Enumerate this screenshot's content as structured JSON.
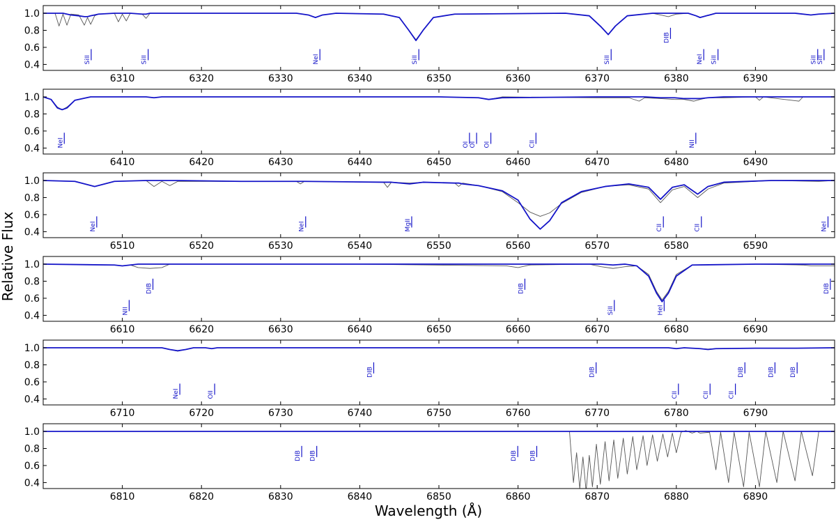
{
  "xlabel": "Wavelength (Å)",
  "ylabel": "Relative Flux",
  "chart_data": [
    {
      "type": "line",
      "xlim": [
        6300,
        6400
      ],
      "xticks": [
        6310,
        6320,
        6330,
        6340,
        6350,
        6360,
        6370,
        6380,
        6390
      ],
      "ylim": [
        0.33,
        1.09
      ],
      "yticks": [
        0.4,
        0.6,
        0.8,
        {
          "value": 1,
          "label": "1.0"
        }
      ],
      "x": [
        6300,
        6301.5,
        6302,
        6302.5,
        6303,
        6303.5,
        6304.5,
        6305.2,
        6305.6,
        6306,
        6306.5,
        6307,
        6309,
        6309.5,
        6310,
        6310.5,
        6311,
        6312.5,
        6313,
        6313.5,
        6320,
        6332,
        6333.5,
        6334.4,
        6335.3,
        6337,
        6343,
        6345,
        6346.2,
        6347.1,
        6348,
        6349.3,
        6352,
        6366,
        6369,
        6370.5,
        6371.4,
        6372.3,
        6373.8,
        6377,
        6378,
        6379,
        6380,
        6381.5,
        6382.5,
        6383,
        6383.8,
        6385,
        6395,
        6397,
        6398,
        6400
      ],
      "series": [
        {
          "color": "#555555",
          "values": [
            1.0,
            1.0,
            0.85,
            0.99,
            0.86,
            0.99,
            0.98,
            0.86,
            0.95,
            0.87,
            0.97,
            0.99,
            1.0,
            0.9,
            0.99,
            0.91,
            1.0,
            0.99,
            0.94,
            1.0,
            1.0,
            1.0,
            0.98,
            0.95,
            0.98,
            1.0,
            0.99,
            0.95,
            0.8,
            0.69,
            0.8,
            0.95,
            0.99,
            1.0,
            0.97,
            0.84,
            0.75,
            0.85,
            0.97,
            1.0,
            0.98,
            0.96,
            0.99,
            1.0,
            0.97,
            0.95,
            0.97,
            1.0,
            1.0,
            0.98,
            0.99,
            1.0
          ]
        },
        {
          "color": "#1414c8",
          "values": [
            1.0,
            1.0,
            1.0,
            1.0,
            0.99,
            0.98,
            0.97,
            0.96,
            0.96,
            0.97,
            0.98,
            0.99,
            1.0,
            1.0,
            1.0,
            1.0,
            1.0,
            0.99,
            0.99,
            1.0,
            1.0,
            1.0,
            0.98,
            0.95,
            0.98,
            1.0,
            0.99,
            0.95,
            0.8,
            0.68,
            0.8,
            0.95,
            0.99,
            1.0,
            0.97,
            0.84,
            0.75,
            0.85,
            0.97,
            1.0,
            1.0,
            1.0,
            1.0,
            1.0,
            0.97,
            0.95,
            0.97,
            1.0,
            1.0,
            0.98,
            0.99,
            1.0
          ]
        }
      ],
      "annotations": [
        {
          "text": "SiII",
          "x": 6305.8,
          "y": 0.4
        },
        {
          "text": "SiII",
          "x": 6313,
          "y": 0.4
        },
        {
          "text": "NeI",
          "x": 6334.7,
          "y": 0.4
        },
        {
          "text": "SiII",
          "x": 6347.2,
          "y": 0.4
        },
        {
          "text": "SiII",
          "x": 6371.5,
          "y": 0.4
        },
        {
          "text": "DIB",
          "x": 6379,
          "y": 0.65
        },
        {
          "text": "NeI",
          "x": 6383.2,
          "y": 0.4
        },
        {
          "text": "SiII",
          "x": 6385,
          "y": 0.4
        },
        {
          "text": "SiII",
          "x": 6397.6,
          "y": 0.4
        },
        {
          "text": "SiII",
          "x": 6398.4,
          "y": 0.4
        }
      ]
    },
    {
      "type": "line",
      "xlim": [
        6400,
        6500
      ],
      "xticks": [
        6410,
        6420,
        6430,
        6440,
        6450,
        6460,
        6470,
        6480,
        6490
      ],
      "ylim": [
        0.33,
        1.09
      ],
      "yticks": [
        0.4,
        0.6,
        0.8,
        {
          "value": 1,
          "label": "1.0"
        }
      ],
      "x": [
        6400,
        6401,
        6401.8,
        6402.4,
        6403,
        6404,
        6406,
        6413,
        6414,
        6415,
        6440,
        6450,
        6455,
        6456.3,
        6458,
        6470,
        6474,
        6475.3,
        6476,
        6478,
        6479.8,
        6481,
        6482.2,
        6483,
        6484,
        6486,
        6490,
        6490.5,
        6491,
        6495.5,
        6496,
        6500
      ],
      "series": [
        {
          "color": "#555555",
          "values": [
            1.0,
            0.97,
            0.88,
            0.85,
            0.88,
            0.96,
            1.0,
            1.0,
            0.99,
            1.0,
            1.0,
            1.0,
            0.99,
            0.97,
            1.0,
            0.99,
            0.99,
            0.95,
            0.99,
            0.98,
            0.97,
            0.97,
            0.95,
            0.97,
            0.99,
            0.99,
            1.0,
            0.96,
            1.0,
            0.95,
            1.0,
            1.0
          ]
        },
        {
          "color": "#1414c8",
          "values": [
            1.0,
            0.97,
            0.87,
            0.85,
            0.87,
            0.96,
            1.0,
            1.0,
            0.99,
            1.0,
            1.0,
            1.0,
            0.99,
            0.97,
            0.99,
            1.0,
            1.0,
            1.0,
            1.0,
            0.99,
            0.99,
            0.98,
            0.98,
            0.98,
            0.99,
            1.0,
            1.0,
            1.0,
            1.0,
            1.0,
            1.0,
            1.0
          ]
        }
      ],
      "annotations": [
        {
          "text": "NeI",
          "x": 6402.4,
          "y": 0.4
        },
        {
          "text": "OI",
          "x": 6453.6,
          "y": 0.4
        },
        {
          "text": "OI",
          "x": 6454.5,
          "y": 0.4
        },
        {
          "text": "OI",
          "x": 6456.3,
          "y": 0.4
        },
        {
          "text": "CII",
          "x": 6462,
          "y": 0.4
        },
        {
          "text": "NII",
          "x": 6482.2,
          "y": 0.4
        }
      ]
    },
    {
      "type": "line",
      "xlim": [
        6500,
        6600
      ],
      "xticks": [
        6510,
        6520,
        6530,
        6540,
        6550,
        6560,
        6570,
        6580,
        6590
      ],
      "ylim": [
        0.33,
        1.09
      ],
      "yticks": [
        0.4,
        0.6,
        0.8,
        {
          "value": 1,
          "label": "1.0"
        }
      ],
      "x": [
        6500,
        6504,
        6506.5,
        6509,
        6513,
        6514,
        6515,
        6516,
        6517,
        6525,
        6532,
        6532.5,
        6533,
        6543,
        6543.5,
        6544,
        6546.3,
        6548,
        6552,
        6552.5,
        6553,
        6555,
        6558,
        6560,
        6561.5,
        6562.8,
        6564,
        6565.5,
        6568,
        6571,
        6574,
        6576.5,
        6578,
        6579.5,
        6581,
        6582.7,
        6584,
        6586,
        6592,
        6598,
        6600
      ],
      "series": [
        {
          "color": "#555555",
          "values": [
            1.0,
            0.99,
            0.93,
            0.99,
            1.0,
            0.93,
            0.99,
            0.94,
            0.99,
            0.99,
            0.99,
            0.96,
            0.99,
            0.98,
            0.92,
            0.98,
            0.97,
            0.98,
            0.97,
            0.93,
            0.97,
            0.94,
            0.87,
            0.74,
            0.63,
            0.58,
            0.62,
            0.73,
            0.86,
            0.93,
            0.95,
            0.9,
            0.74,
            0.89,
            0.93,
            0.8,
            0.9,
            0.97,
            1.0,
            0.99,
            1.0
          ]
        },
        {
          "color": "#1414c8",
          "values": [
            1.0,
            0.99,
            0.93,
            0.99,
            1.0,
            1.0,
            1.0,
            1.0,
            1.0,
            0.99,
            0.99,
            0.99,
            0.99,
            0.98,
            0.98,
            0.98,
            0.96,
            0.98,
            0.97,
            0.97,
            0.96,
            0.94,
            0.88,
            0.77,
            0.55,
            0.43,
            0.53,
            0.74,
            0.87,
            0.93,
            0.96,
            0.92,
            0.78,
            0.92,
            0.95,
            0.84,
            0.93,
            0.98,
            1.0,
            1.0,
            1.0
          ]
        }
      ],
      "annotations": [
        {
          "text": "NeI",
          "x": 6506.5,
          "y": 0.4
        },
        {
          "text": "NeI",
          "x": 6532.9,
          "y": 0.4
        },
        {
          "text": "MgII",
          "x": 6546.3,
          "y": 0.4
        },
        {
          "text": "CII",
          "x": 6578.1,
          "y": 0.4
        },
        {
          "text": "CII",
          "x": 6582.9,
          "y": 0.4
        },
        {
          "text": "NeI",
          "x": 6598.9,
          "y": 0.4
        }
      ]
    },
    {
      "type": "line",
      "xlim": [
        6600,
        6700
      ],
      "xticks": [
        6610,
        6620,
        6630,
        6640,
        6650,
        6660,
        6670,
        6680,
        6690
      ],
      "ylim": [
        0.33,
        1.09
      ],
      "yticks": [
        0.4,
        0.6,
        0.8,
        {
          "value": 1,
          "label": "1.0"
        }
      ],
      "x": [
        6600,
        6609,
        6610,
        6611,
        6612,
        6613.5,
        6615,
        6616,
        6640,
        6658.5,
        6660,
        6661.5,
        6669,
        6670.5,
        6672,
        6673.5,
        6675,
        6676.5,
        6677.5,
        6678.2,
        6679,
        6680,
        6682,
        6690,
        6696,
        6697,
        6700
      ],
      "series": [
        {
          "color": "#555555",
          "values": [
            1.0,
            0.99,
            0.98,
            0.99,
            0.96,
            0.95,
            0.96,
            1.0,
            1.0,
            0.98,
            0.96,
            0.99,
            1.0,
            0.97,
            0.95,
            0.97,
            0.98,
            0.88,
            0.68,
            0.58,
            0.68,
            0.88,
            0.99,
            1.0,
            0.99,
            0.98,
            0.98
          ]
        },
        {
          "color": "#1414c8",
          "values": [
            1.0,
            0.99,
            0.98,
            0.99,
            1.0,
            1.0,
            1.0,
            1.0,
            1.0,
            1.0,
            1.0,
            1.0,
            1.0,
            1.0,
            0.99,
            1.0,
            0.98,
            0.86,
            0.66,
            0.56,
            0.66,
            0.86,
            0.99,
            1.0,
            1.0,
            1.0,
            1.0
          ]
        }
      ],
      "annotations": [
        {
          "text": "NII",
          "x": 6610.6,
          "y": 0.4
        },
        {
          "text": "DIB",
          "x": 6613.6,
          "y": 0.65
        },
        {
          "text": "DIB",
          "x": 6660.6,
          "y": 0.65
        },
        {
          "text": "SiII",
          "x": 6671.9,
          "y": 0.4
        },
        {
          "text": "HeI",
          "x": 6678.2,
          "y": 0.4
        },
        {
          "text": "DIB",
          "x": 6699.2,
          "y": 0.65
        }
      ]
    },
    {
      "type": "line",
      "xlim": [
        6700,
        6800
      ],
      "xticks": [
        6710,
        6720,
        6730,
        6740,
        6750,
        6760,
        6770,
        6780,
        6790
      ],
      "ylim": [
        0.33,
        1.09
      ],
      "yticks": [
        0.4,
        0.6,
        0.8,
        {
          "value": 1,
          "label": "1.0"
        }
      ],
      "x": [
        6700,
        6715,
        6716,
        6717,
        6718,
        6719,
        6720.5,
        6721.3,
        6722,
        6760,
        6779,
        6780,
        6781,
        6783,
        6784,
        6785,
        6790,
        6795,
        6800
      ],
      "series": [
        {
          "color": "#555555",
          "values": [
            1.0,
            1.0,
            0.98,
            0.96,
            0.98,
            1.0,
            1.0,
            0.99,
            1.0,
            1.0,
            1.0,
            0.99,
            1.0,
            0.99,
            0.985,
            0.99,
            0.995,
            0.995,
            1.0
          ]
        },
        {
          "color": "#1414c8",
          "values": [
            1.0,
            1.0,
            0.98,
            0.965,
            0.98,
            1.0,
            1.0,
            0.99,
            1.0,
            1.0,
            1.0,
            0.99,
            1.0,
            0.99,
            0.98,
            0.99,
            0.995,
            0.995,
            1.0
          ]
        }
      ],
      "annotations": [
        {
          "text": "NeI",
          "x": 6717,
          "y": 0.4
        },
        {
          "text": "OII",
          "x": 6721.4,
          "y": 0.4
        },
        {
          "text": "DIB",
          "x": 6741.5,
          "y": 0.65
        },
        {
          "text": "DIB",
          "x": 6769.6,
          "y": 0.65
        },
        {
          "text": "CII",
          "x": 6780,
          "y": 0.4
        },
        {
          "text": "CII",
          "x": 6784,
          "y": 0.4
        },
        {
          "text": "CII",
          "x": 6787.2,
          "y": 0.4
        },
        {
          "text": "DIB",
          "x": 6788.4,
          "y": 0.65
        },
        {
          "text": "DIB",
          "x": 6792.2,
          "y": 0.65
        },
        {
          "text": "DIB",
          "x": 6795,
          "y": 0.65
        }
      ]
    },
    {
      "type": "line",
      "xlim": [
        6800,
        6900
      ],
      "xticks": [
        6810,
        6820,
        6830,
        6840,
        6850,
        6860,
        6870,
        6880,
        6890
      ],
      "ylim": [
        0.33,
        1.09
      ],
      "yticks": [
        0.4,
        0.6,
        0.8,
        {
          "value": 1,
          "label": "1.0"
        }
      ],
      "x": [
        6800,
        6866.5,
        6867,
        6867.4,
        6867.8,
        6868.2,
        6868.6,
        6869,
        6869.4,
        6869.9,
        6870.4,
        6871,
        6871.5,
        6872.1,
        6872.6,
        6873.3,
        6873.8,
        6874.5,
        6875,
        6875.8,
        6876.3,
        6877,
        6877.6,
        6878.3,
        6878.9,
        6879.5,
        6880,
        6880.6,
        6881.2,
        6882,
        6882.6,
        6883,
        6884.2,
        6885,
        6885.6,
        6886.6,
        6887.3,
        6888.5,
        6889.2,
        6890.5,
        6891.3,
        6892.7,
        6893.5,
        6895,
        6895.8,
        6897.2,
        6898,
        6900
      ],
      "series": [
        {
          "color": "#555555",
          "values": [
            1.0,
            1.0,
            0.4,
            0.75,
            0.33,
            0.7,
            0.3,
            0.72,
            0.35,
            0.85,
            0.38,
            0.88,
            0.42,
            0.9,
            0.45,
            0.92,
            0.5,
            0.94,
            0.55,
            0.95,
            0.6,
            0.96,
            0.65,
            0.97,
            0.7,
            0.98,
            0.75,
            0.99,
            1.01,
            0.98,
            1.0,
            0.98,
            0.99,
            0.55,
            0.99,
            0.4,
            0.99,
            0.35,
            0.99,
            0.35,
            1.0,
            0.4,
            1.0,
            0.42,
            1.0,
            0.48,
            1.0,
            1.0
          ]
        },
        {
          "color": "#1414c8",
          "values": [
            1.0,
            1.0,
            1.0,
            1.0,
            1.0,
            1.0,
            1.0,
            1.0,
            1.0,
            1.0,
            1.0,
            1.0,
            1.0,
            1.0,
            1.0,
            1.0,
            1.0,
            1.0,
            1.0,
            1.0,
            1.0,
            1.0,
            1.0,
            1.0,
            1.0,
            1.0,
            1.0,
            1.0,
            1.0,
            1.0,
            1.0,
            1.0,
            1.0,
            1.0,
            1.0,
            1.0,
            1.0,
            1.0,
            1.0,
            1.0,
            1.0,
            1.0,
            1.0,
            1.0,
            1.0,
            1.0,
            1.0,
            1.0
          ]
        }
      ],
      "annotations": [
        {
          "text": "DIB",
          "x": 6832.4,
          "y": 0.65
        },
        {
          "text": "DIB",
          "x": 6834.3,
          "y": 0.65
        },
        {
          "text": "DIB",
          "x": 6859.7,
          "y": 0.65
        },
        {
          "text": "DIB",
          "x": 6862.1,
          "y": 0.65
        }
      ]
    }
  ]
}
